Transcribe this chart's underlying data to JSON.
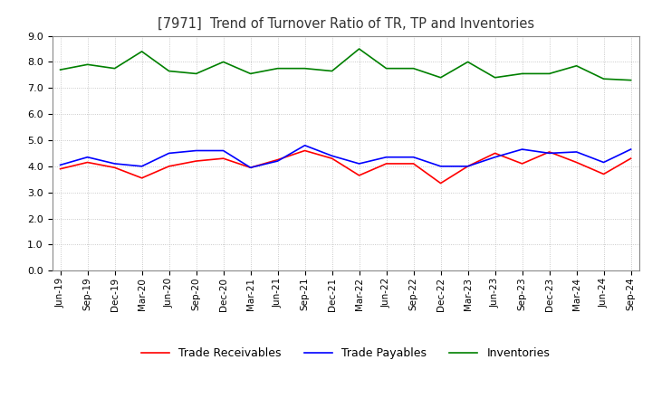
{
  "title": "[7971]  Trend of Turnover Ratio of TR, TP and Inventories",
  "x_labels": [
    "Jun-19",
    "Sep-19",
    "Dec-19",
    "Mar-20",
    "Jun-20",
    "Sep-20",
    "Dec-20",
    "Mar-21",
    "Jun-21",
    "Sep-21",
    "Dec-21",
    "Mar-22",
    "Jun-22",
    "Sep-22",
    "Dec-22",
    "Mar-23",
    "Jun-23",
    "Sep-23",
    "Dec-23",
    "Mar-24",
    "Jun-24",
    "Sep-24"
  ],
  "trade_receivables": [
    3.9,
    4.15,
    3.95,
    3.55,
    4.0,
    4.2,
    4.3,
    3.95,
    4.25,
    4.6,
    4.3,
    3.65,
    4.1,
    4.1,
    3.35,
    4.0,
    4.5,
    4.1,
    4.55,
    4.15,
    3.7,
    4.3
  ],
  "trade_payables": [
    4.05,
    4.35,
    4.1,
    4.0,
    4.5,
    4.6,
    4.6,
    3.95,
    4.2,
    4.8,
    4.4,
    4.1,
    4.35,
    4.35,
    4.0,
    4.0,
    4.35,
    4.65,
    4.5,
    4.55,
    4.15,
    4.65
  ],
  "inventories": [
    7.7,
    7.9,
    7.75,
    8.4,
    7.65,
    7.55,
    8.0,
    7.55,
    7.75,
    7.75,
    7.65,
    8.5,
    7.75,
    7.75,
    7.4,
    8.0,
    7.4,
    7.55,
    7.55,
    7.85,
    7.35,
    7.3
  ],
  "tr_color": "#ff0000",
  "tp_color": "#0000ff",
  "inv_color": "#008000",
  "ylim": [
    0.0,
    9.0
  ],
  "yticks": [
    0.0,
    1.0,
    2.0,
    3.0,
    4.0,
    5.0,
    6.0,
    7.0,
    8.0,
    9.0
  ],
  "legend_labels": [
    "Trade Receivables",
    "Trade Payables",
    "Inventories"
  ],
  "background_color": "#ffffff",
  "grid_color": "#aaaaaa"
}
